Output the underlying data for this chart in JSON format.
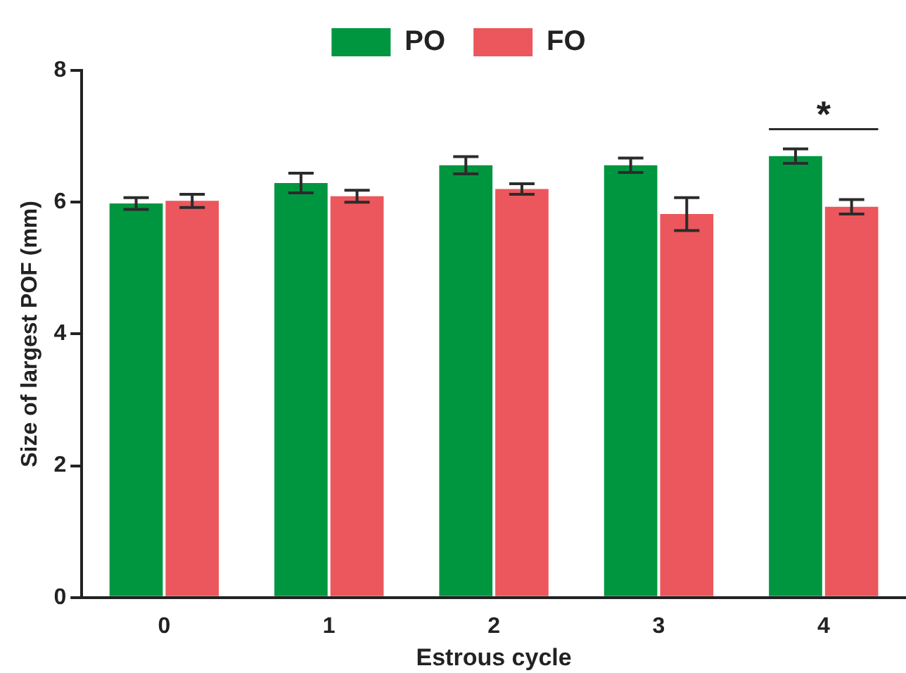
{
  "chart_data": {
    "type": "bar",
    "xlabel": "Estrous cycle",
    "ylabel": "Size of largest POF (mm)",
    "categories": [
      "0",
      "1",
      "2",
      "3",
      "4"
    ],
    "series": [
      {
        "name": "PO",
        "color": "#009640",
        "values": [
          5.98,
          6.29,
          6.56,
          6.56,
          6.7
        ],
        "errors": [
          0.09,
          0.15,
          0.13,
          0.11,
          0.11
        ]
      },
      {
        "name": "FO",
        "color": "#eb575c",
        "values": [
          6.02,
          6.09,
          6.2,
          5.82,
          5.93
        ],
        "errors": [
          0.1,
          0.09,
          0.08,
          0.25,
          0.11
        ]
      }
    ],
    "ylim": [
      0,
      8
    ],
    "yticks": [
      0,
      2,
      4,
      6,
      8
    ],
    "grid": false,
    "legend": "top",
    "annotations": [
      "*"
    ]
  }
}
